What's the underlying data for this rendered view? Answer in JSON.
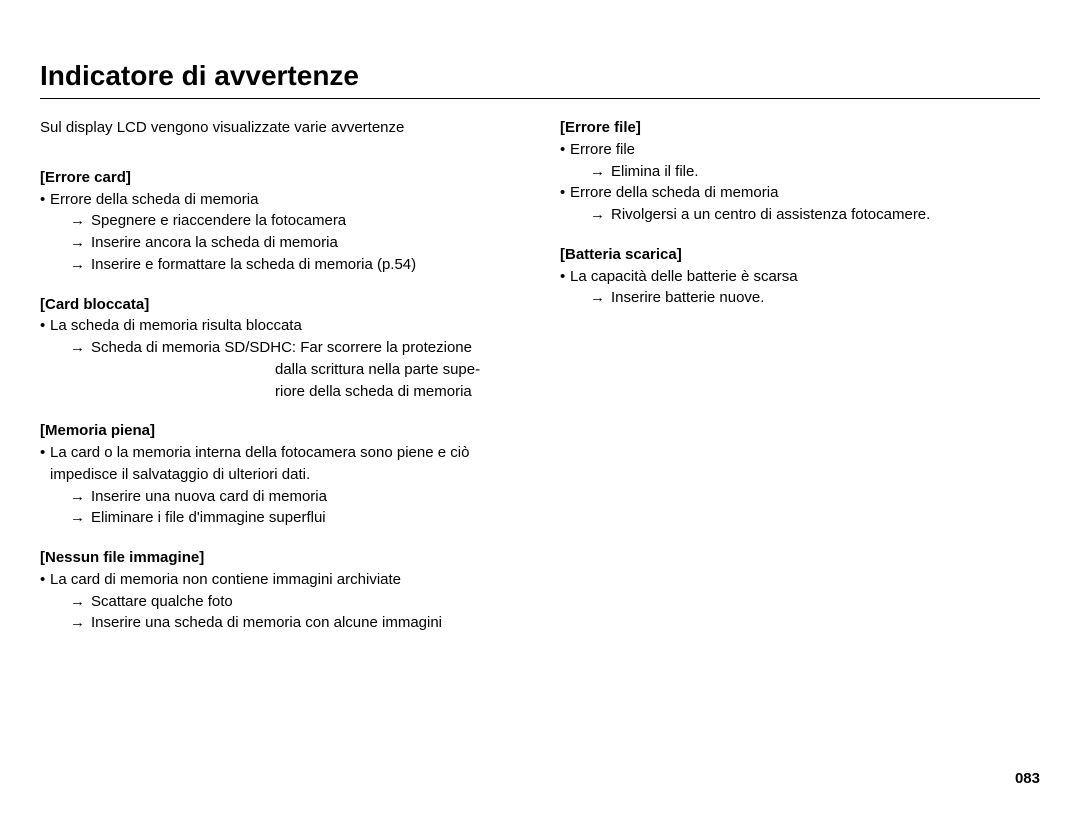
{
  "title": "Indicatore di avvertenze",
  "intro": "Sul display LCD vengono visualizzate varie avvertenze",
  "pageNumber": "083",
  "left": {
    "s1": {
      "head": "[Errore card]",
      "b1": "Errore della scheda di memoria",
      "a1": "Spegnere e riaccendere la fotocamera",
      "a2": "Inserire ancora la scheda di memoria",
      "a3": "Inserire e formattare la scheda di memoria (p.54)"
    },
    "s2": {
      "head": "[Card bloccata]",
      "b1": "La scheda di memoria risulta bloccata",
      "a1": "Scheda di memoria SD/SDHC: Far scorrere la protezione",
      "a1b": "dalla scrittura nella parte supe-",
      "a1c": "riore della scheda di memoria"
    },
    "s3": {
      "head": "[Memoria piena]",
      "b1": "La card o la memoria interna della fotocamera sono piene e ciò impedisce il salvataggio di ulteriori dati.",
      "a1": "Inserire una nuova card di memoria",
      "a2": "Eliminare i file d'immagine superflui"
    },
    "s4": {
      "head": "[Nessun file immagine]",
      "b1": "La card di memoria non contiene immagini archiviate",
      "a1": "Scattare qualche foto",
      "a2": "Inserire una scheda di memoria con alcune immagini"
    }
  },
  "right": {
    "s1": {
      "head": "[Errore file]",
      "b1": "Errore file",
      "a1": "Elimina il file.",
      "b2": "Errore della scheda di memoria",
      "a2": "Rivolgersi a un centro di assistenza fotocamere."
    },
    "s2": {
      "head": "[Batteria scarica]",
      "b1": "La capacità delle batterie è scarsa",
      "a1": "Inserire batterie nuove."
    }
  }
}
